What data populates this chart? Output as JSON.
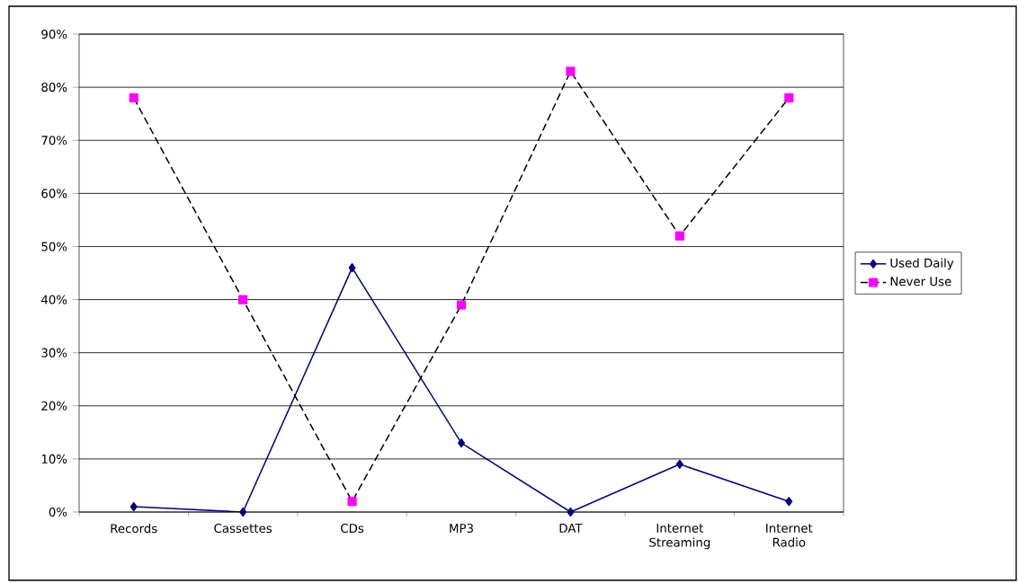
{
  "chart_data": {
    "type": "line",
    "categories": [
      "Records",
      "Cassettes",
      "CDs",
      "MP3",
      "DAT",
      "Internet Streaming",
      "Internet Radio"
    ],
    "series": [
      {
        "name": "Used Daily",
        "color": "#000080",
        "marker": "diamond",
        "line_style": "solid",
        "values": [
          1,
          0,
          46,
          13,
          0,
          9,
          2
        ]
      },
      {
        "name": "Never Use",
        "color": "#ff00ff",
        "marker": "square",
        "line_style": "dashed",
        "values": [
          78,
          40,
          2,
          39,
          83,
          52,
          78
        ]
      }
    ],
    "ylim": [
      0,
      90
    ],
    "yticks": [
      {
        "value": 0,
        "label": "0%"
      },
      {
        "value": 10,
        "label": "10%"
      },
      {
        "value": 20,
        "label": "20%"
      },
      {
        "value": 30,
        "label": "30%"
      },
      {
        "value": 40,
        "label": "40%"
      },
      {
        "value": 50,
        "label": "50%"
      },
      {
        "value": 60,
        "label": "60%"
      },
      {
        "value": 70,
        "label": "70%"
      },
      {
        "value": 80,
        "label": "80%"
      },
      {
        "value": 90,
        "label": "90%"
      }
    ],
    "grid": "y",
    "legend": "right"
  }
}
